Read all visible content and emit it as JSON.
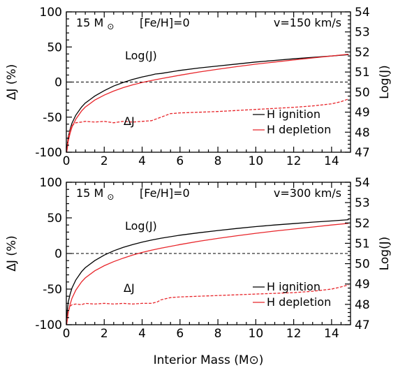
{
  "chart_data": [
    {
      "type": "line",
      "panel_label": {
        "mass": "15 M",
        "sun_symbol": "⊙",
        "metallicity": "[Fe/H]=0",
        "velocity": "v=150 km/s"
      },
      "xlabel": "",
      "ylabel_left": "ΔJ (%)",
      "ylabel_right": "Log(J)",
      "xlim": [
        0,
        15
      ],
      "ylim_left": [
        -100,
        100
      ],
      "ylim_right": [
        47,
        54
      ],
      "xticks": [
        0,
        2,
        4,
        6,
        8,
        10,
        12,
        14
      ],
      "yticks_left": [
        -100,
        -50,
        0,
        50,
        100
      ],
      "yticks_right": [
        47,
        48,
        49,
        50,
        51,
        52,
        53,
        54
      ],
      "annotations": {
        "logj": "Log(J)",
        "deltaj": "ΔJ"
      },
      "legend": {
        "position": "bottom-right",
        "entries": [
          {
            "label": "H ignition",
            "color": "#000000"
          },
          {
            "label": "H depletion",
            "color": "#e8262b"
          }
        ]
      },
      "series": [
        {
          "name": "H ignition",
          "axis": "right",
          "color": "#000000",
          "style": "solid",
          "x": [
            0.02,
            0.05,
            0.1,
            0.2,
            0.3,
            0.5,
            0.8,
            1.0,
            1.5,
            2.0,
            2.5,
            3.0,
            3.5,
            4.0,
            4.5,
            4.7,
            5.0,
            6.0,
            7.0,
            8.0,
            9.0,
            10.0,
            11.0,
            12.0,
            13.0,
            14.0,
            14.9
          ],
          "y": [
            47.05,
            47.4,
            47.75,
            48.15,
            48.45,
            48.85,
            49.25,
            49.45,
            49.8,
            50.07,
            50.3,
            50.48,
            50.63,
            50.75,
            50.85,
            50.9,
            50.93,
            51.08,
            51.2,
            51.3,
            51.4,
            51.5,
            51.58,
            51.66,
            51.73,
            51.8,
            51.87
          ]
        },
        {
          "name": "H depletion",
          "axis": "right",
          "color": "#e8262b",
          "style": "solid",
          "x": [
            0.02,
            0.05,
            0.1,
            0.2,
            0.3,
            0.5,
            0.8,
            1.0,
            1.5,
            2.0,
            2.5,
            3.0,
            3.5,
            4.0,
            4.5,
            5.0,
            6.0,
            7.0,
            8.0,
            9.0,
            10.0,
            11.0,
            12.0,
            13.0,
            14.0,
            14.9
          ],
          "y": [
            47.0,
            47.2,
            47.55,
            47.95,
            48.25,
            48.65,
            49.05,
            49.25,
            49.6,
            49.85,
            50.05,
            50.22,
            50.36,
            50.48,
            50.58,
            50.67,
            50.84,
            51.0,
            51.14,
            51.27,
            51.39,
            51.5,
            51.6,
            51.7,
            51.8,
            51.89
          ]
        },
        {
          "name": "ΔJ",
          "axis": "left",
          "color": "#e8262b",
          "style": "dashed",
          "x": [
            0.02,
            0.1,
            0.2,
            0.3,
            0.5,
            0.8,
            1.0,
            1.5,
            2.0,
            2.5,
            3.0,
            3.5,
            4.0,
            4.5,
            4.7,
            5.0,
            5.5,
            6.0,
            8.0,
            10.0,
            12.0,
            13.0,
            14.0,
            14.5,
            14.9
          ],
          "y": [
            -97,
            -80,
            -68,
            -62,
            -58,
            -57,
            -56,
            -57,
            -56,
            -58,
            -56,
            -57,
            -56,
            -55,
            -53,
            -50,
            -45,
            -44,
            -42,
            -39,
            -36,
            -34,
            -31,
            -28,
            -24
          ]
        }
      ]
    },
    {
      "type": "line",
      "panel_label": {
        "mass": "15 M",
        "sun_symbol": "⊙",
        "metallicity": "[Fe/H]=0",
        "velocity": "v=300 km/s"
      },
      "xlabel": "Interior Mass (M⊙)",
      "ylabel_left": "ΔJ (%)",
      "ylabel_right": "Log(J)",
      "xlim": [
        0,
        15
      ],
      "ylim_left": [
        -100,
        100
      ],
      "ylim_right": [
        47,
        54
      ],
      "xticks": [
        0,
        2,
        4,
        6,
        8,
        10,
        12,
        14
      ],
      "yticks_left": [
        -100,
        -50,
        0,
        50,
        100
      ],
      "yticks_right": [
        47,
        48,
        49,
        50,
        51,
        52,
        53,
        54
      ],
      "annotations": {
        "logj": "Log(J)",
        "deltaj": "ΔJ"
      },
      "legend": {
        "position": "bottom-right",
        "entries": [
          {
            "label": "H ignition",
            "color": "#000000"
          },
          {
            "label": "H depletion",
            "color": "#e8262b"
          }
        ]
      },
      "series": [
        {
          "name": "H ignition",
          "axis": "right",
          "color": "#000000",
          "style": "solid",
          "x": [
            0.02,
            0.05,
            0.1,
            0.2,
            0.3,
            0.5,
            0.8,
            1.0,
            1.5,
            2.0,
            2.5,
            3.0,
            3.5,
            4.0,
            4.5,
            5.0,
            6.0,
            7.0,
            8.0,
            9.0,
            10.0,
            11.0,
            12.0,
            13.0,
            14.0,
            14.9
          ],
          "y": [
            47.3,
            47.7,
            48.1,
            48.5,
            48.8,
            49.2,
            49.6,
            49.8,
            50.15,
            50.42,
            50.63,
            50.8,
            50.94,
            51.06,
            51.16,
            51.25,
            51.4,
            51.52,
            51.63,
            51.73,
            51.82,
            51.9,
            51.97,
            52.04,
            52.1,
            52.16
          ]
        },
        {
          "name": "H depletion",
          "axis": "right",
          "color": "#e8262b",
          "style": "solid",
          "x": [
            0.02,
            0.05,
            0.1,
            0.2,
            0.3,
            0.5,
            0.8,
            1.0,
            1.5,
            2.0,
            2.5,
            3.0,
            3.5,
            4.0,
            4.5,
            5.0,
            6.0,
            7.0,
            8.0,
            9.0,
            10.0,
            11.0,
            12.0,
            13.0,
            14.0,
            14.9
          ],
          "y": [
            47.0,
            47.25,
            47.6,
            48.0,
            48.3,
            48.7,
            49.1,
            49.3,
            49.65,
            49.9,
            50.1,
            50.27,
            50.42,
            50.55,
            50.66,
            50.76,
            50.94,
            51.1,
            51.24,
            51.37,
            51.49,
            51.6,
            51.7,
            51.8,
            51.9,
            51.98
          ]
        },
        {
          "name": "ΔJ",
          "axis": "left",
          "color": "#e8262b",
          "style": "dashed",
          "x": [
            0.02,
            0.1,
            0.2,
            0.3,
            0.5,
            0.8,
            1.0,
            1.5,
            2.0,
            2.5,
            3.0,
            3.5,
            4.0,
            4.5,
            4.8,
            5.0,
            5.5,
            6.0,
            8.0,
            10.0,
            12.0,
            13.0,
            14.0,
            14.5,
            14.9
          ],
          "y": [
            -97,
            -82,
            -74,
            -72,
            -71,
            -72,
            -70,
            -71,
            -70,
            -71,
            -70,
            -71,
            -70,
            -70,
            -68,
            -65,
            -62,
            -61,
            -59,
            -57,
            -55,
            -53,
            -50,
            -47,
            -44
          ]
        }
      ]
    }
  ]
}
